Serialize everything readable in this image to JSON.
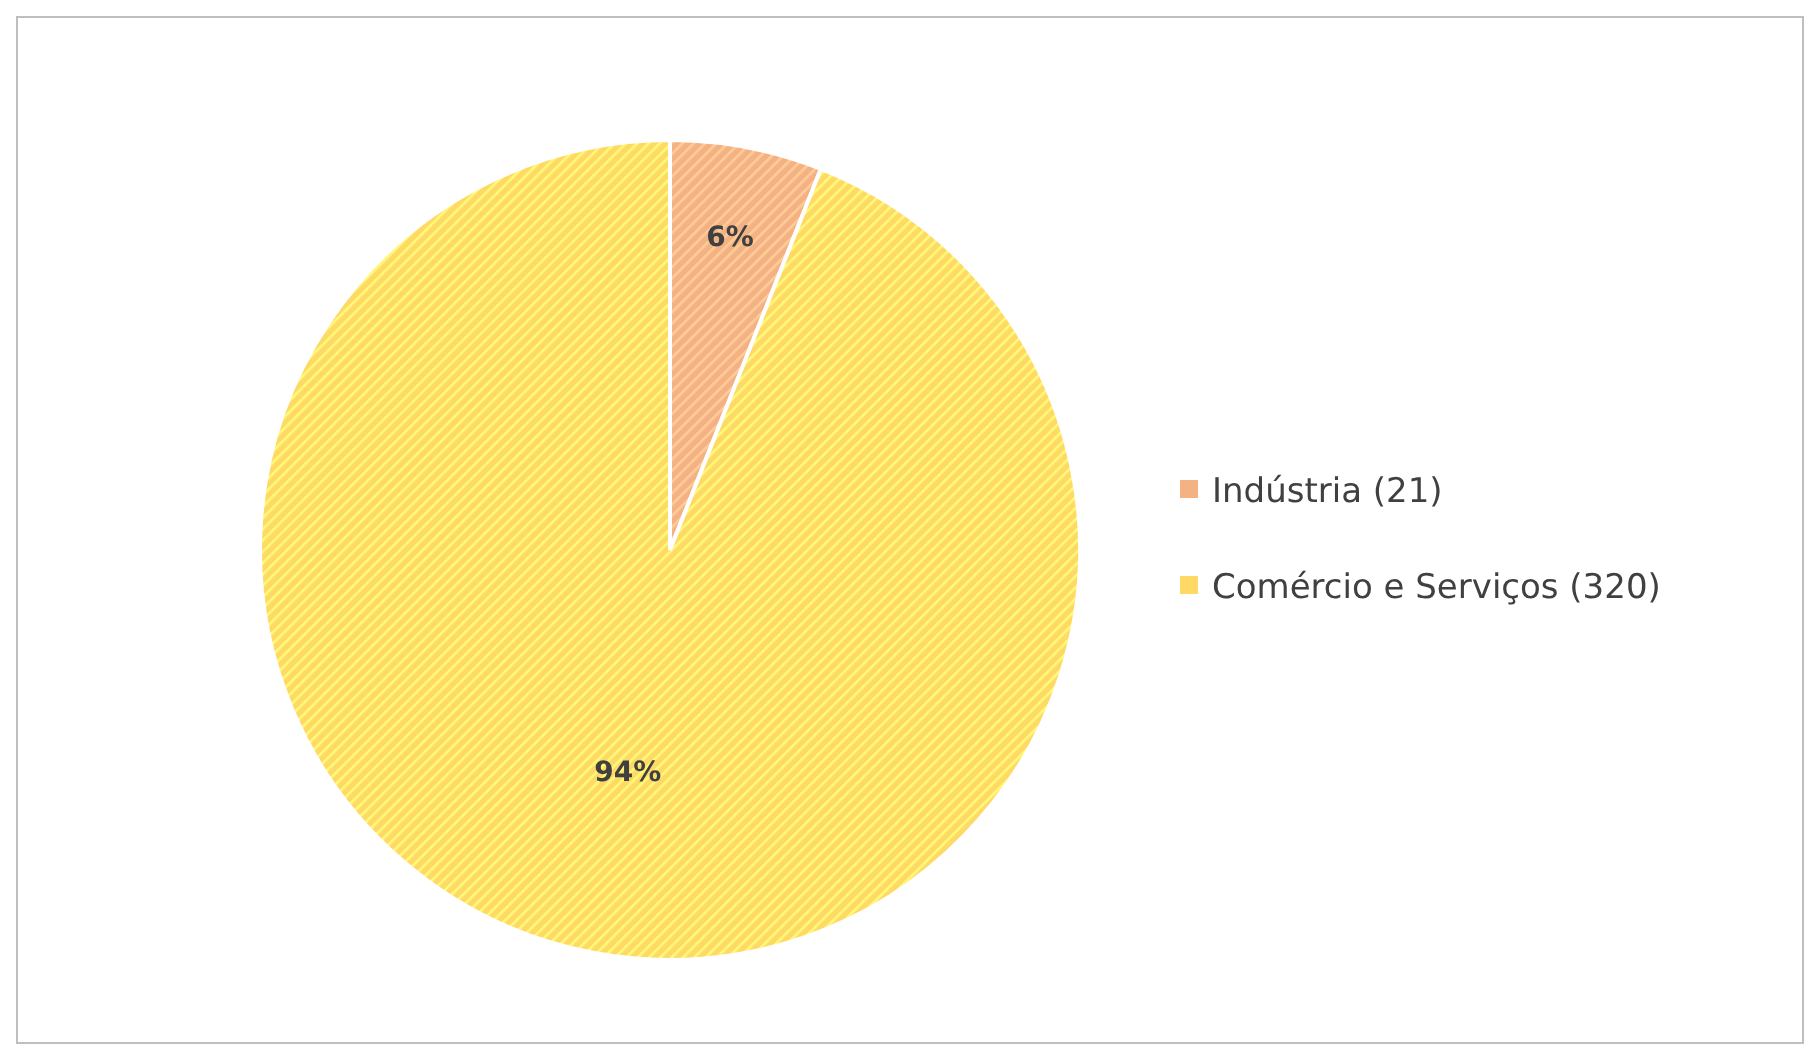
{
  "chart_data": {
    "type": "pie",
    "categories": [
      "Indústria (21)",
      "Comércio e Serviços (320)"
    ],
    "values": [
      6,
      94
    ],
    "colors": [
      "#f4b183",
      "#ffd966"
    ],
    "value_labels": [
      "6%",
      "94%"
    ],
    "legend": "right"
  }
}
